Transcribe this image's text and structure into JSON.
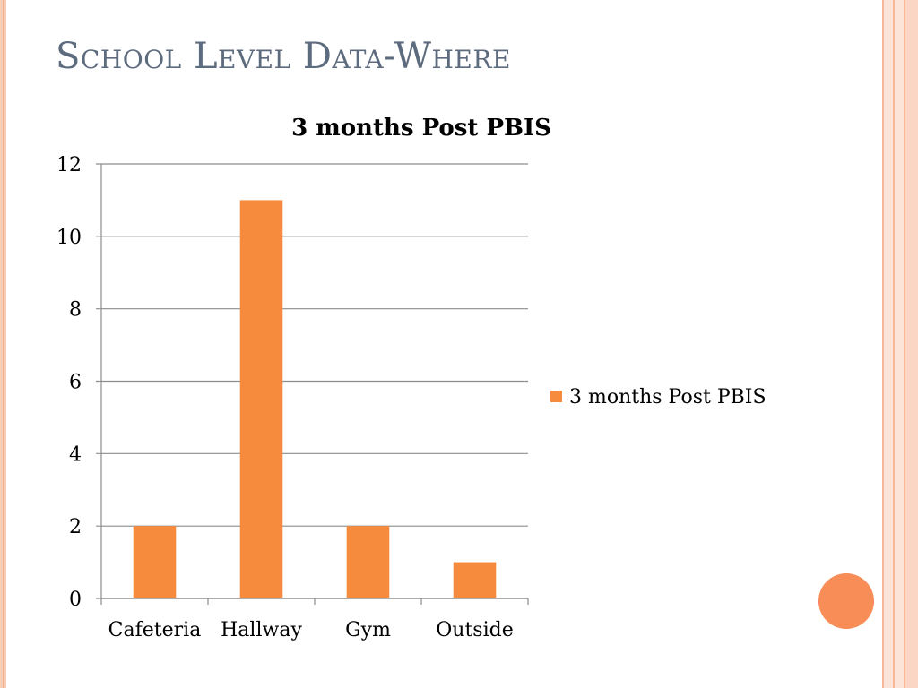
{
  "slide": {
    "title": "School Level Data-Where"
  },
  "colors": {
    "bar": "#f68b3d",
    "accent_dot": "#f88d58",
    "title_text": "#5d6b7e"
  },
  "chart_data": {
    "type": "bar",
    "title": "3 months Post PBIS",
    "categories": [
      "Cafeteria",
      "Hallway",
      "Gym",
      "Outside"
    ],
    "series": [
      {
        "name": "3 months Post PBIS",
        "values": [
          2,
          11,
          2,
          1
        ]
      }
    ],
    "xlabel": "",
    "ylabel": "",
    "ylim": [
      0,
      12
    ],
    "yticks": [
      0,
      2,
      4,
      6,
      8,
      10,
      12
    ],
    "grid": true,
    "legend": "right"
  }
}
